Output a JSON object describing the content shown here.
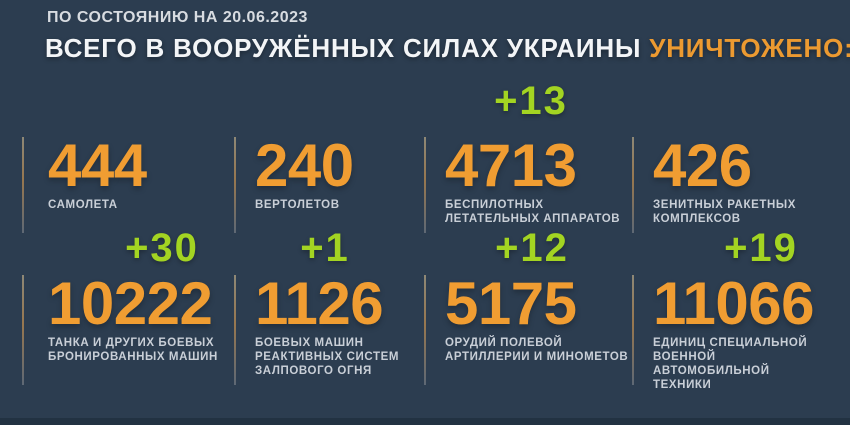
{
  "header": {
    "date_line": "ПО СОСТОЯНИЮ НА 20.06.2023",
    "title_main": "ВСЕГО В ВООРУЖЁННЫХ СИЛАХ УКРАИНЫ ",
    "title_accent": "УНИЧТОЖЕНО:"
  },
  "colors": {
    "background": "#2c3d50",
    "number_orange": "#f09d32",
    "title_accent_orange": "#ec9a31",
    "delta_green": "#a3d422",
    "label_grey": "#c9cfd7",
    "title_white": "#f3f5f7"
  },
  "stats": [
    {
      "value": "444",
      "label": "САМОЛЕТА",
      "delta": ""
    },
    {
      "value": "240",
      "label": "ВЕРТОЛЕТОВ",
      "delta": ""
    },
    {
      "value": "4713",
      "label": "БЕСПИЛОТНЫХ\nЛЕТАТЕЛЬНЫХ АППАРАТОВ",
      "delta": "+13"
    },
    {
      "value": "426",
      "label": "ЗЕНИТНЫХ РАКЕТНЫХ\nКОМПЛЕКСОВ",
      "delta": ""
    },
    {
      "value": "10222",
      "label": "ТАНКА И ДРУГИХ БОЕВЫХ\nБРОНИРОВАННЫХ МАШИН",
      "delta": "+30"
    },
    {
      "value": "1126",
      "label": "БОЕВЫХ МАШИН\nРЕАКТИВНЫХ СИСТЕМ\nЗАЛПОВОГО ОГНЯ",
      "delta": "+1"
    },
    {
      "value": "5175",
      "label": "ОРУДИЙ ПОЛЕВОЙ\nАРТИЛЛЕРИИ И МИНОМЕТОВ",
      "delta": "+12"
    },
    {
      "value": "11066",
      "label": "ЕДИНИЦ СПЕЦИАЛЬНОЙ\nВОЕННОЙ АВТОМОБИЛЬНОЙ\nТЕХНИКИ",
      "delta": "+19"
    }
  ],
  "chart_data": {
    "type": "table",
    "title": "ВСЕГО В ВООРУЖЁННЫХ СИЛАХ УКРАИНЫ УНИЧТОЖЕНО:",
    "as_of_date": "20.06.2023",
    "categories": [
      "САМОЛЕТА",
      "ВЕРТОЛЕТОВ",
      "БЕСПИЛОТНЫХ ЛЕТАТЕЛЬНЫХ АППАРАТОВ",
      "ЗЕНИТНЫХ РАКЕТНЫХ КОМПЛЕКСОВ",
      "ТАНКА И ДРУГИХ БОЕВЫХ БРОНИРОВАННЫХ МАШИН",
      "БОЕВЫХ МАШИН РЕАКТИВНЫХ СИСТЕМ ЗАЛПОВОГО ОГНЯ",
      "ОРУДИЙ ПОЛЕВОЙ АРТИЛЛЕРИИ И МИНОМЕТОВ",
      "ЕДИНИЦ СПЕЦИАЛЬНОЙ ВОЕННОЙ АВТОМОБИЛЬНОЙ ТЕХНИКИ"
    ],
    "values": [
      444,
      240,
      4713,
      426,
      10222,
      1126,
      5175,
      11066
    ],
    "daily_increase": [
      null,
      null,
      13,
      null,
      30,
      1,
      12,
      19
    ],
    "legend_position": "none",
    "grid": false
  }
}
